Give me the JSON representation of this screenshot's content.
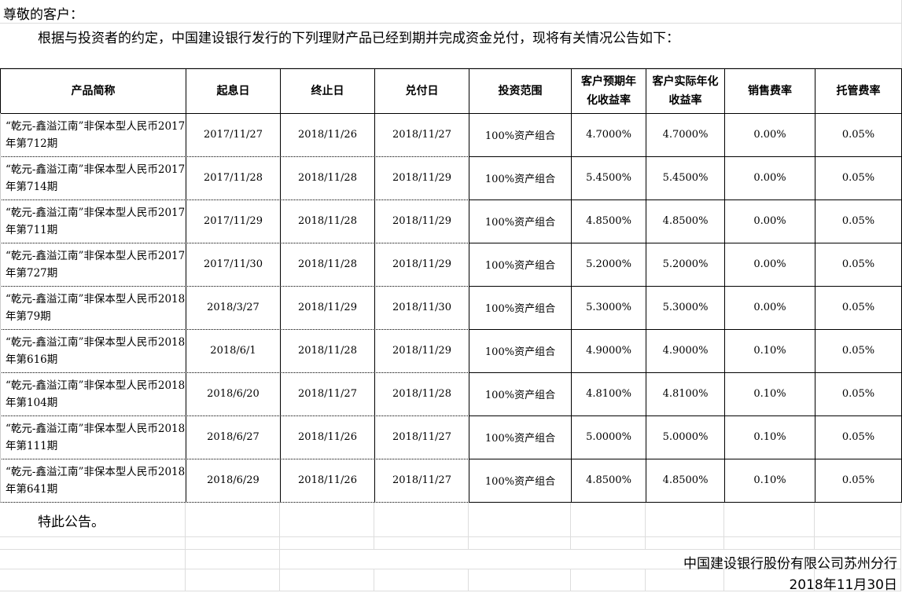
{
  "greeting": "尊敬的客户：",
  "intro": "根据与投资者的约定，中国建设银行发行的下列理财产品已经到期并完成资金兑付，现将有关情况公告如下：",
  "table": {
    "headers": [
      "产品简称",
      "起息日",
      "终止日",
      "兑付日",
      "投资范围",
      "客户预期年化收益率",
      "客户实际年化收益率",
      "销售费率",
      "托管费率"
    ],
    "rows": [
      [
        "“乾元-鑫溢江南”非保本型人民币2017年第712期",
        "2017/11/27",
        "2018/11/26",
        "2018/11/27",
        "100%资产组合",
        "4.7000%",
        "4.7000%",
        "0.00%",
        "0.05%"
      ],
      [
        "“乾元-鑫溢江南”非保本型人民币2017年第714期",
        "2017/11/28",
        "2018/11/28",
        "2018/11/29",
        "100%资产组合",
        "5.4500%",
        "5.4500%",
        "0.00%",
        "0.05%"
      ],
      [
        "“乾元-鑫溢江南”非保本型人民币2017年第711期",
        "2017/11/29",
        "2018/11/28",
        "2018/11/29",
        "100%资产组合",
        "4.8500%",
        "4.8500%",
        "0.00%",
        "0.05%"
      ],
      [
        "“乾元-鑫溢江南”非保本型人民币2017年第727期",
        "2017/11/30",
        "2018/11/28",
        "2018/11/29",
        "100%资产组合",
        "5.2000%",
        "5.2000%",
        "0.00%",
        "0.05%"
      ],
      [
        "“乾元-鑫溢江南”非保本型人民币2018年第79期",
        "2018/3/27",
        "2018/11/29",
        "2018/11/30",
        "100%资产组合",
        "5.3000%",
        "5.3000%",
        "0.00%",
        "0.05%"
      ],
      [
        "“乾元-鑫溢江南”非保本型人民币2018年第616期",
        "2018/6/1",
        "2018/11/28",
        "2018/11/29",
        "100%资产组合",
        "4.9000%",
        "4.9000%",
        "0.10%",
        "0.05%"
      ],
      [
        "“乾元-鑫溢江南”非保本型人民币2018年第104期",
        "2018/6/20",
        "2018/11/27",
        "2018/11/28",
        "100%资产组合",
        "4.8100%",
        "4.8100%",
        "0.10%",
        "0.05%"
      ],
      [
        "“乾元-鑫溢江南”非保本型人民币2018年第111期",
        "2018/6/27",
        "2018/11/26",
        "2018/11/27",
        "100%资产组合",
        "5.0000%",
        "5.0000%",
        "0.10%",
        "0.05%"
      ],
      [
        "“乾元-鑫溢江南”非保本型人民币2018年第641期",
        "2018/6/29",
        "2018/11/26",
        "2018/11/27",
        "100%资产组合",
        "4.8500%",
        "4.8500%",
        "0.10%",
        "0.05%"
      ]
    ]
  },
  "closing": "特此公告。",
  "signature": "中国建设银行股份有限公司苏州分行",
  "date": "2018年11月30日",
  "colors": {
    "gridline": "#dddddd",
    "border": "#000000"
  }
}
